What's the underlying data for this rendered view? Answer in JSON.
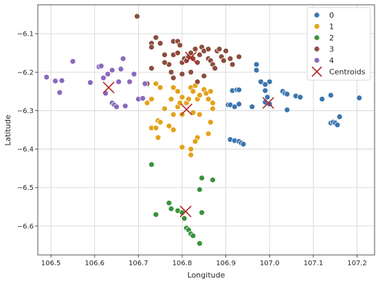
{
  "chart_data": {
    "type": "scatter",
    "title": "",
    "xlabel": "Longitude",
    "ylabel": "Latitude",
    "xlim": [
      106.47,
      107.24
    ],
    "ylim": [
      -6.675,
      -6.025
    ],
    "xticks": [
      106.5,
      106.6,
      106.7,
      106.8,
      106.9,
      107.0,
      107.1,
      107.2
    ],
    "xtick_labels": [
      "106.5",
      "106.6",
      "106.7",
      "106.8",
      "106.9",
      "107.0",
      "107.1",
      "107.2"
    ],
    "yticks": [
      -6.1,
      -6.2,
      -6.3,
      -6.4,
      -6.5,
      -6.6
    ],
    "ytick_labels": [
      "−6.1",
      "−6.2",
      "−6.3",
      "−6.4",
      "−6.5",
      "−6.6"
    ],
    "grid": true,
    "legend_position": "top-right",
    "series": [
      {
        "name": "0",
        "color": "#3b75af",
        "points": [
          [
            106.97,
            -6.18
          ],
          [
            106.97,
            -6.195
          ],
          [
            106.98,
            -6.225
          ],
          [
            106.99,
            -6.232
          ],
          [
            107.0,
            -6.225
          ],
          [
            106.99,
            -6.248
          ],
          [
            106.995,
            -6.265
          ],
          [
            106.99,
            -6.278
          ],
          [
            107.0,
            -6.283
          ],
          [
            107.03,
            -6.25
          ],
          [
            107.035,
            -6.255
          ],
          [
            107.04,
            -6.257
          ],
          [
            107.06,
            -6.262
          ],
          [
            107.07,
            -6.265
          ],
          [
            107.04,
            -6.298
          ],
          [
            106.96,
            -6.29
          ],
          [
            106.915,
            -6.248
          ],
          [
            106.925,
            -6.246
          ],
          [
            106.93,
            -6.246
          ],
          [
            106.905,
            -6.285
          ],
          [
            106.91,
            -6.285
          ],
          [
            106.92,
            -6.29
          ],
          [
            106.93,
            -6.283
          ],
          [
            106.91,
            -6.375
          ],
          [
            106.92,
            -6.378
          ],
          [
            106.93,
            -6.38
          ],
          [
            106.935,
            -6.384
          ],
          [
            106.94,
            -6.387
          ],
          [
            107.12,
            -6.27
          ],
          [
            107.14,
            -6.26
          ],
          [
            107.14,
            -6.332
          ],
          [
            107.145,
            -6.33
          ],
          [
            107.15,
            -6.332
          ],
          [
            107.155,
            -6.337
          ],
          [
            107.16,
            -6.316
          ],
          [
            107.205,
            -6.267
          ]
        ]
      },
      {
        "name": "1",
        "color": "#e3a21a",
        "points": [
          [
            106.74,
            -6.23
          ],
          [
            106.75,
            -6.24
          ],
          [
            106.73,
            -6.27
          ],
          [
            106.72,
            -6.28
          ],
          [
            106.73,
            -6.345
          ],
          [
            106.74,
            -6.345
          ],
          [
            106.745,
            -6.37
          ],
          [
            106.745,
            -6.326
          ],
          [
            106.75,
            -6.33
          ],
          [
            106.76,
            -6.295
          ],
          [
            106.77,
            -6.34
          ],
          [
            106.78,
            -6.35
          ],
          [
            106.78,
            -6.31
          ],
          [
            106.775,
            -6.27
          ],
          [
            106.78,
            -6.24
          ],
          [
            106.79,
            -6.25
          ],
          [
            106.79,
            -6.29
          ],
          [
            106.795,
            -6.28
          ],
          [
            106.8,
            -6.265
          ],
          [
            106.8,
            -6.31
          ],
          [
            106.8,
            -6.395
          ],
          [
            106.81,
            -6.28
          ],
          [
            106.815,
            -6.27
          ],
          [
            106.82,
            -6.24
          ],
          [
            106.825,
            -6.25
          ],
          [
            106.83,
            -6.235
          ],
          [
            106.835,
            -6.27
          ],
          [
            106.84,
            -6.26
          ],
          [
            106.85,
            -6.245
          ],
          [
            106.855,
            -6.255
          ],
          [
            106.86,
            -6.27
          ],
          [
            106.865,
            -6.25
          ],
          [
            106.87,
            -6.28
          ],
          [
            106.87,
            -6.295
          ],
          [
            106.865,
            -6.33
          ],
          [
            106.86,
            -6.36
          ],
          [
            106.835,
            -6.37
          ],
          [
            106.83,
            -6.38
          ],
          [
            106.82,
            -6.4
          ],
          [
            106.82,
            -6.415
          ],
          [
            106.84,
            -6.31
          ],
          [
            106.825,
            -6.305
          ]
        ]
      },
      {
        "name": "2",
        "color": "#3a923a",
        "points": [
          [
            106.73,
            -6.44
          ],
          [
            106.74,
            -6.57
          ],
          [
            106.77,
            -6.54
          ],
          [
            106.775,
            -6.555
          ],
          [
            106.79,
            -6.56
          ],
          [
            106.8,
            -6.565
          ],
          [
            106.805,
            -6.58
          ],
          [
            106.81,
            -6.605
          ],
          [
            106.815,
            -6.61
          ],
          [
            106.82,
            -6.62
          ],
          [
            106.825,
            -6.625
          ],
          [
            106.84,
            -6.645
          ],
          [
            106.84,
            -6.505
          ],
          [
            106.845,
            -6.475
          ],
          [
            106.87,
            -6.48
          ],
          [
            106.845,
            -6.565
          ]
        ]
      },
      {
        "name": "3",
        "color": "#8c4d3d",
        "points": [
          [
            106.73,
            -6.125
          ],
          [
            106.73,
            -6.135
          ],
          [
            106.74,
            -6.11
          ],
          [
            106.75,
            -6.125
          ],
          [
            106.76,
            -6.155
          ],
          [
            106.77,
            -6.18
          ],
          [
            106.775,
            -6.2
          ],
          [
            106.78,
            -6.215
          ],
          [
            106.78,
            -6.12
          ],
          [
            106.79,
            -6.12
          ],
          [
            106.795,
            -6.13
          ],
          [
            106.8,
            -6.175
          ],
          [
            106.805,
            -6.165
          ],
          [
            106.81,
            -6.17
          ],
          [
            106.815,
            -6.16
          ],
          [
            106.82,
            -6.15
          ],
          [
            106.825,
            -6.165
          ],
          [
            106.83,
            -6.14
          ],
          [
            106.835,
            -6.175
          ],
          [
            106.84,
            -6.155
          ],
          [
            106.845,
            -6.135
          ],
          [
            106.85,
            -6.145
          ],
          [
            106.86,
            -6.14
          ],
          [
            106.86,
            -6.165
          ],
          [
            106.865,
            -6.17
          ],
          [
            106.87,
            -6.18
          ],
          [
            106.875,
            -6.19
          ],
          [
            106.88,
            -6.145
          ],
          [
            106.885,
            -6.14
          ],
          [
            106.89,
            -6.16
          ],
          [
            106.895,
            -6.17
          ],
          [
            106.9,
            -6.145
          ],
          [
            106.91,
            -6.165
          ],
          [
            106.915,
            -6.18
          ],
          [
            106.93,
            -6.16
          ],
          [
            106.82,
            -6.2
          ],
          [
            106.8,
            -6.205
          ],
          [
            106.835,
            -6.225
          ],
          [
            106.85,
            -6.21
          ],
          [
            106.73,
            -6.19
          ],
          [
            106.72,
            -6.23
          ],
          [
            106.78,
            -6.155
          ],
          [
            106.79,
            -6.15
          ],
          [
            106.76,
            -6.175
          ]
        ]
      },
      {
        "name": "4",
        "color": "#8a69bd",
        "points": [
          [
            106.49,
            -6.213
          ],
          [
            106.51,
            -6.223
          ],
          [
            106.52,
            -6.253
          ],
          [
            106.525,
            -6.222
          ],
          [
            106.55,
            -6.172
          ],
          [
            106.59,
            -6.227
          ],
          [
            106.61,
            -6.186
          ],
          [
            106.615,
            -6.184
          ],
          [
            106.62,
            -6.215
          ],
          [
            106.625,
            -6.255
          ],
          [
            106.63,
            -6.205
          ],
          [
            106.64,
            -6.195
          ],
          [
            106.64,
            -6.28
          ],
          [
            106.645,
            -6.285
          ],
          [
            106.65,
            -6.29
          ],
          [
            106.655,
            -6.225
          ],
          [
            106.66,
            -6.192
          ],
          [
            106.665,
            -6.165
          ],
          [
            106.67,
            -6.288
          ],
          [
            106.68,
            -6.225
          ],
          [
            106.69,
            -6.205
          ],
          [
            106.7,
            -6.27
          ],
          [
            106.71,
            -6.268
          ],
          [
            106.715,
            -6.23
          ]
        ]
      }
    ],
    "centroids": {
      "name": "Centroids",
      "color": "#b22222",
      "points": [
        [
          106.632,
          -6.24
        ],
        [
          106.81,
          -6.297
        ],
        [
          106.808,
          -6.562
        ],
        [
          106.82,
          -6.162
        ],
        [
          106.997,
          -6.28
        ]
      ]
    },
    "special_points": [
      {
        "x": 106.697,
        "y": -6.055,
        "color": "#8c4d3d"
      }
    ]
  },
  "legend": {
    "entries": [
      "0",
      "1",
      "2",
      "3",
      "4",
      "Centroids"
    ]
  }
}
